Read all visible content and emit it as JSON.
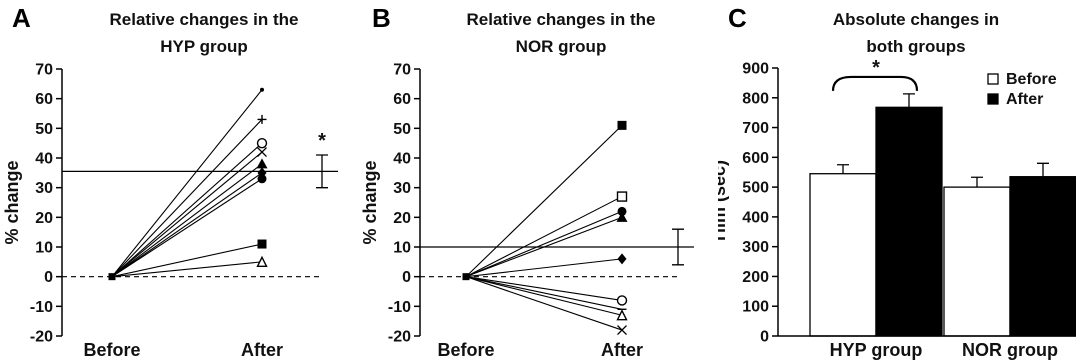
{
  "chart_data": [
    {
      "panel_letter": "A",
      "type": "line",
      "title": [
        "Relative changes in the",
        "HYP group"
      ],
      "ylabel": "% change",
      "categories": [
        "Before",
        "After"
      ],
      "ylim": [
        -20,
        70
      ],
      "yticks": [
        -20,
        -10,
        0,
        10,
        20,
        30,
        40,
        50,
        60,
        70
      ],
      "subjects": [
        {
          "marker": "dot",
          "values": [
            0,
            63
          ]
        },
        {
          "marker": "plus",
          "values": [
            0,
            53
          ]
        },
        {
          "marker": "open-circle",
          "values": [
            0,
            45
          ]
        },
        {
          "marker": "cross",
          "values": [
            0,
            42
          ]
        },
        {
          "marker": "filled-triangle",
          "values": [
            0,
            38
          ]
        },
        {
          "marker": "filled-diamond",
          "values": [
            0,
            35
          ]
        },
        {
          "marker": "filled-circle",
          "values": [
            0,
            33
          ]
        },
        {
          "marker": "filled-square",
          "values": [
            0,
            11
          ]
        },
        {
          "marker": "open-triangle",
          "values": [
            0,
            5
          ]
        }
      ],
      "mean": 35.5,
      "errorbar": {
        "low": 30,
        "high": 41
      },
      "significance": "*"
    },
    {
      "panel_letter": "B",
      "type": "line",
      "title": [
        "Relative changes in the",
        "NOR group"
      ],
      "ylabel": "% change",
      "categories": [
        "Before",
        "After"
      ],
      "ylim": [
        -20,
        70
      ],
      "yticks": [
        -20,
        -10,
        0,
        10,
        20,
        30,
        40,
        50,
        60,
        70
      ],
      "subjects": [
        {
          "marker": "filled-square",
          "values": [
            0,
            51
          ]
        },
        {
          "marker": "open-square",
          "values": [
            0,
            27
          ]
        },
        {
          "marker": "filled-circle",
          "values": [
            0,
            22
          ]
        },
        {
          "marker": "filled-triangle",
          "values": [
            0,
            20
          ]
        },
        {
          "marker": "filled-diamond",
          "values": [
            0,
            6
          ]
        },
        {
          "marker": "open-circle",
          "values": [
            0,
            -8
          ]
        },
        {
          "marker": "dash",
          "values": [
            0,
            -11
          ]
        },
        {
          "marker": "open-triangle",
          "values": [
            0,
            -13
          ]
        },
        {
          "marker": "cross",
          "values": [
            0,
            -18
          ]
        }
      ],
      "mean": 10,
      "errorbar": {
        "low": 4,
        "high": 16
      },
      "significance": ""
    },
    {
      "panel_letter": "C",
      "type": "bar",
      "title": [
        "Absolute changes in",
        "both groups"
      ],
      "ylabel": "Tlim (sec)",
      "categories": [
        "HYP group",
        "NOR  group"
      ],
      "ylim": [
        0,
        900
      ],
      "yticks": [
        0,
        100,
        200,
        300,
        400,
        500,
        600,
        700,
        800,
        900
      ],
      "series": [
        {
          "name": "Before",
          "color": "#ffffff",
          "values": [
            545,
            500
          ],
          "errors": [
            30,
            33
          ]
        },
        {
          "name": "After",
          "color": "#000000",
          "values": [
            768,
            535
          ],
          "errors": [
            45,
            45
          ]
        }
      ],
      "legend_position": "top-right",
      "significance": "*"
    }
  ]
}
